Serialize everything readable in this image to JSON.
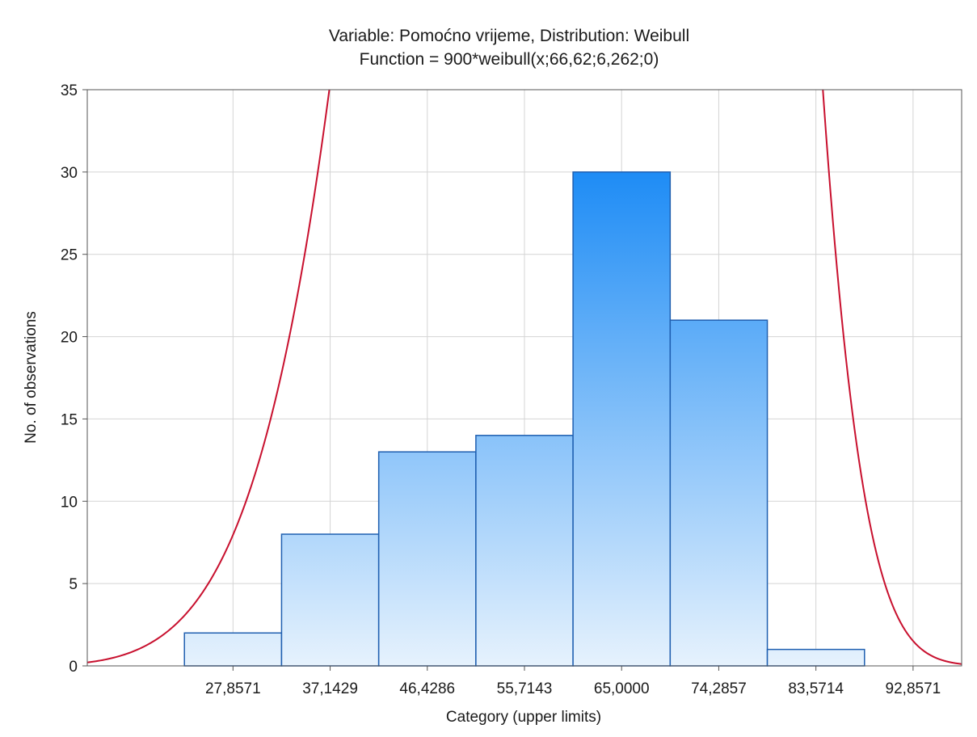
{
  "chart_data": {
    "type": "bar",
    "title": "Variable: Pomoćno vrijeme, Distribution: Weibull",
    "subtitle": "Function = 900*weibull(x;66,62;6,262;0)",
    "xlabel": "Category (upper limits)",
    "ylabel": "No. of observations",
    "xlim": [
      13.9286,
      97.5
    ],
    "ylim": [
      0,
      35
    ],
    "yticks": [
      0,
      5,
      10,
      15,
      20,
      25,
      30,
      35
    ],
    "ytick_labels": [
      "0",
      "5",
      "10",
      "15",
      "20",
      "25",
      "30",
      "35"
    ],
    "xticks": [
      27.8571,
      37.1429,
      46.4286,
      55.7143,
      65.0,
      74.2857,
      83.5714,
      92.8571
    ],
    "xtick_labels": [
      "27,8571",
      "37,1429",
      "46,4286",
      "55,7143",
      "65,0000",
      "74,2857",
      "83,5714",
      "92,8571"
    ],
    "bins": [
      {
        "lower": 23.2143,
        "upper": 32.5,
        "count": 2
      },
      {
        "lower": 32.5,
        "upper": 41.7857,
        "count": 8
      },
      {
        "lower": 41.7857,
        "upper": 51.0714,
        "count": 13
      },
      {
        "lower": 51.0714,
        "upper": 60.3571,
        "count": 14
      },
      {
        "lower": 60.3571,
        "upper": 69.6429,
        "count": 30
      },
      {
        "lower": 69.6429,
        "upper": 78.9286,
        "count": 21
      },
      {
        "lower": 78.9286,
        "upper": 88.2143,
        "count": 1
      }
    ],
    "fit_curve": {
      "distribution": "weibull",
      "n": 900,
      "scale": 66.62,
      "shape": 6.262,
      "threshold": 0,
      "bin_width": 9.2857,
      "color": "#c8102e"
    },
    "bar_gradient": {
      "top": "#1e8cf5",
      "bottom": "#e6f2fd"
    },
    "bar_edge": "#1f5fb0",
    "grid": true
  }
}
